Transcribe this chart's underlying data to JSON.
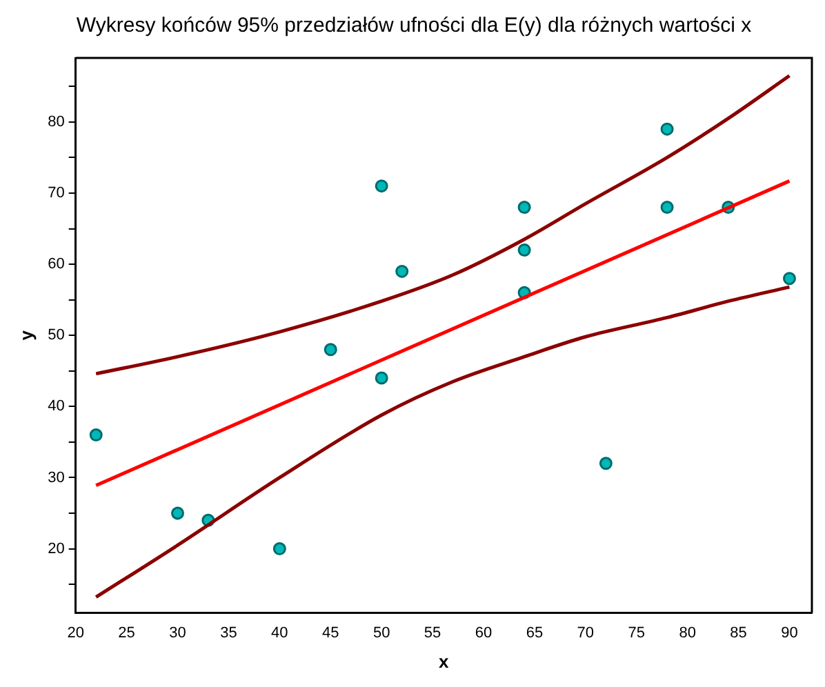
{
  "chart_data": {
    "type": "scatter",
    "title": "Wykresy końców 95% przedziałów ufności dla E(y) dla różnych wartości x",
    "xlabel": "x",
    "ylabel": "y",
    "xlim": [
      20,
      92.2
    ],
    "xticks": [
      20,
      25,
      30,
      35,
      40,
      45,
      50,
      55,
      60,
      65,
      70,
      75,
      80,
      85,
      90
    ],
    "ylim": [
      11,
      89
    ],
    "yticks": [
      {
        "value": 15,
        "label": null
      },
      20,
      {
        "value": 25,
        "label": null
      },
      30,
      {
        "value": 35,
        "label": null
      },
      40,
      {
        "value": 45,
        "label": null
      },
      50,
      {
        "value": 55,
        "label": null
      },
      60,
      {
        "value": 65,
        "label": null
      },
      70,
      {
        "value": 75,
        "label": null
      },
      80,
      {
        "value": 85,
        "label": null
      }
    ],
    "grid": false,
    "legend": false,
    "series": [
      {
        "type": "line",
        "color": "#8b0000",
        "marker": "none",
        "line_style": "solid",
        "x": [
          22,
          30,
          40,
          50,
          57,
          64,
          70,
          78,
          84,
          90
        ],
        "values": [
          44.6,
          47,
          50.5,
          54.8,
          58.5,
          63.5,
          68.5,
          75,
          80.5,
          86.5
        ]
      },
      {
        "type": "line",
        "color": "#ff0000",
        "marker": "none",
        "line_style": "solid",
        "x": [
          22,
          90
        ],
        "values": [
          28.9,
          71.7
        ]
      },
      {
        "type": "line",
        "color": "#8b0000",
        "marker": "none",
        "line_style": "solid",
        "x": [
          22,
          30,
          40,
          50,
          57,
          64,
          70,
          78,
          84,
          90
        ],
        "values": [
          13.2,
          20.5,
          30,
          38.8,
          43.5,
          47,
          49.8,
          52.5,
          54.8,
          56.8
        ]
      },
      {
        "type": "scatter",
        "color": "#00b8b8",
        "marker": "circle",
        "x": [
          22,
          30,
          33,
          40,
          45,
          50,
          50,
          52,
          64,
          64,
          64,
          72,
          78,
          78,
          84,
          90
        ],
        "values": [
          36,
          25,
          24,
          20,
          48,
          44,
          71,
          59,
          68,
          62,
          56,
          32,
          79,
          68,
          68,
          58
        ]
      }
    ]
  }
}
